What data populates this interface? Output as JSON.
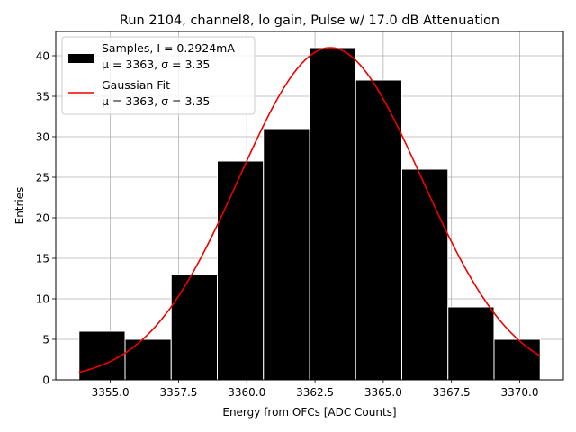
{
  "chart_data": {
    "type": "bar",
    "title": "Run 2104, channel8, lo gain, Pulse w/ 17.0 dB Attenuation",
    "xlabel": "Energy from OFCs [ADC Counts]",
    "ylabel": "Entries",
    "xlim": [
      3353.0,
      3371.6
    ],
    "ylim": [
      0,
      43
    ],
    "xticks": [
      3355.0,
      3357.5,
      3360.0,
      3362.5,
      3365.0,
      3367.5,
      3370.0
    ],
    "xtick_labels": [
      "3355.0",
      "3357.5",
      "3360.0",
      "3362.5",
      "3365.0",
      "3367.5",
      "3370.0"
    ],
    "yticks": [
      0,
      5,
      10,
      15,
      20,
      25,
      30,
      35,
      40
    ],
    "ytick_labels": [
      "0",
      "5",
      "10",
      "15",
      "20",
      "25",
      "30",
      "35",
      "40"
    ],
    "grid": true,
    "bin_edges": [
      3353.85,
      3355.54,
      3357.23,
      3358.92,
      3360.61,
      3362.3,
      3363.99,
      3365.68,
      3367.37,
      3369.06,
      3370.75
    ],
    "values": [
      6,
      5,
      13,
      27,
      31,
      41,
      37,
      26,
      9,
      5
    ],
    "bar_color": "#000000",
    "fit": {
      "name": "Gaussian Fit",
      "mu": 3363.06,
      "sigma": 3.35,
      "amplitude": 41,
      "range": [
        3353.85,
        3370.75
      ],
      "color": "#ee0000"
    },
    "legend": {
      "position": "upper-left",
      "entries": [
        {
          "kind": "bar",
          "line1": "Samples, I = 0.2924mA",
          "line2": "μ = 3363, σ = 3.35"
        },
        {
          "kind": "line",
          "line1": "Gaussian Fit",
          "line2": "μ = 3363, σ = 3.35"
        }
      ]
    }
  }
}
